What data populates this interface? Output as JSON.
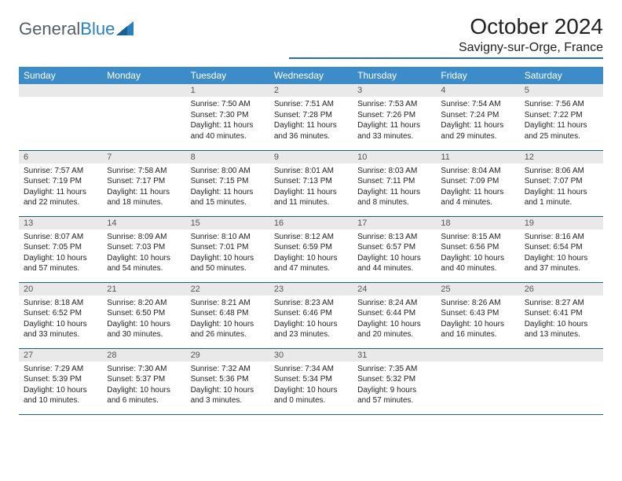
{
  "logo": {
    "text1": "General",
    "text2": "Blue"
  },
  "title": "October 2024",
  "location": "Savigny-sur-Orge, France",
  "colors": {
    "header_bg": "#3b8cc9",
    "header_text": "#ffffff",
    "daynum_bg": "#e9e9e9",
    "divider": "#1f5c8b",
    "logo_gray": "#555e66",
    "logo_blue": "#2a7fbf"
  },
  "day_names": [
    "Sunday",
    "Monday",
    "Tuesday",
    "Wednesday",
    "Thursday",
    "Friday",
    "Saturday"
  ],
  "weeks": [
    [
      {
        "empty": true
      },
      {
        "empty": true
      },
      {
        "n": "1",
        "sunrise": "7:50 AM",
        "sunset": "7:30 PM",
        "daylight": "11 hours and 40 minutes."
      },
      {
        "n": "2",
        "sunrise": "7:51 AM",
        "sunset": "7:28 PM",
        "daylight": "11 hours and 36 minutes."
      },
      {
        "n": "3",
        "sunrise": "7:53 AM",
        "sunset": "7:26 PM",
        "daylight": "11 hours and 33 minutes."
      },
      {
        "n": "4",
        "sunrise": "7:54 AM",
        "sunset": "7:24 PM",
        "daylight": "11 hours and 29 minutes."
      },
      {
        "n": "5",
        "sunrise": "7:56 AM",
        "sunset": "7:22 PM",
        "daylight": "11 hours and 25 minutes."
      }
    ],
    [
      {
        "n": "6",
        "sunrise": "7:57 AM",
        "sunset": "7:19 PM",
        "daylight": "11 hours and 22 minutes."
      },
      {
        "n": "7",
        "sunrise": "7:58 AM",
        "sunset": "7:17 PM",
        "daylight": "11 hours and 18 minutes."
      },
      {
        "n": "8",
        "sunrise": "8:00 AM",
        "sunset": "7:15 PM",
        "daylight": "11 hours and 15 minutes."
      },
      {
        "n": "9",
        "sunrise": "8:01 AM",
        "sunset": "7:13 PM",
        "daylight": "11 hours and 11 minutes."
      },
      {
        "n": "10",
        "sunrise": "8:03 AM",
        "sunset": "7:11 PM",
        "daylight": "11 hours and 8 minutes."
      },
      {
        "n": "11",
        "sunrise": "8:04 AM",
        "sunset": "7:09 PM",
        "daylight": "11 hours and 4 minutes."
      },
      {
        "n": "12",
        "sunrise": "8:06 AM",
        "sunset": "7:07 PM",
        "daylight": "11 hours and 1 minute."
      }
    ],
    [
      {
        "n": "13",
        "sunrise": "8:07 AM",
        "sunset": "7:05 PM",
        "daylight": "10 hours and 57 minutes."
      },
      {
        "n": "14",
        "sunrise": "8:09 AM",
        "sunset": "7:03 PM",
        "daylight": "10 hours and 54 minutes."
      },
      {
        "n": "15",
        "sunrise": "8:10 AM",
        "sunset": "7:01 PM",
        "daylight": "10 hours and 50 minutes."
      },
      {
        "n": "16",
        "sunrise": "8:12 AM",
        "sunset": "6:59 PM",
        "daylight": "10 hours and 47 minutes."
      },
      {
        "n": "17",
        "sunrise": "8:13 AM",
        "sunset": "6:57 PM",
        "daylight": "10 hours and 44 minutes."
      },
      {
        "n": "18",
        "sunrise": "8:15 AM",
        "sunset": "6:56 PM",
        "daylight": "10 hours and 40 minutes."
      },
      {
        "n": "19",
        "sunrise": "8:16 AM",
        "sunset": "6:54 PM",
        "daylight": "10 hours and 37 minutes."
      }
    ],
    [
      {
        "n": "20",
        "sunrise": "8:18 AM",
        "sunset": "6:52 PM",
        "daylight": "10 hours and 33 minutes."
      },
      {
        "n": "21",
        "sunrise": "8:20 AM",
        "sunset": "6:50 PM",
        "daylight": "10 hours and 30 minutes."
      },
      {
        "n": "22",
        "sunrise": "8:21 AM",
        "sunset": "6:48 PM",
        "daylight": "10 hours and 26 minutes."
      },
      {
        "n": "23",
        "sunrise": "8:23 AM",
        "sunset": "6:46 PM",
        "daylight": "10 hours and 23 minutes."
      },
      {
        "n": "24",
        "sunrise": "8:24 AM",
        "sunset": "6:44 PM",
        "daylight": "10 hours and 20 minutes."
      },
      {
        "n": "25",
        "sunrise": "8:26 AM",
        "sunset": "6:43 PM",
        "daylight": "10 hours and 16 minutes."
      },
      {
        "n": "26",
        "sunrise": "8:27 AM",
        "sunset": "6:41 PM",
        "daylight": "10 hours and 13 minutes."
      }
    ],
    [
      {
        "n": "27",
        "sunrise": "7:29 AM",
        "sunset": "5:39 PM",
        "daylight": "10 hours and 10 minutes."
      },
      {
        "n": "28",
        "sunrise": "7:30 AM",
        "sunset": "5:37 PM",
        "daylight": "10 hours and 6 minutes."
      },
      {
        "n": "29",
        "sunrise": "7:32 AM",
        "sunset": "5:36 PM",
        "daylight": "10 hours and 3 minutes."
      },
      {
        "n": "30",
        "sunrise": "7:34 AM",
        "sunset": "5:34 PM",
        "daylight": "10 hours and 0 minutes."
      },
      {
        "n": "31",
        "sunrise": "7:35 AM",
        "sunset": "5:32 PM",
        "daylight": "9 hours and 57 minutes."
      },
      {
        "empty": true
      },
      {
        "empty": true
      }
    ]
  ],
  "labels": {
    "sunrise": "Sunrise:",
    "sunset": "Sunset:",
    "daylight": "Daylight:"
  }
}
